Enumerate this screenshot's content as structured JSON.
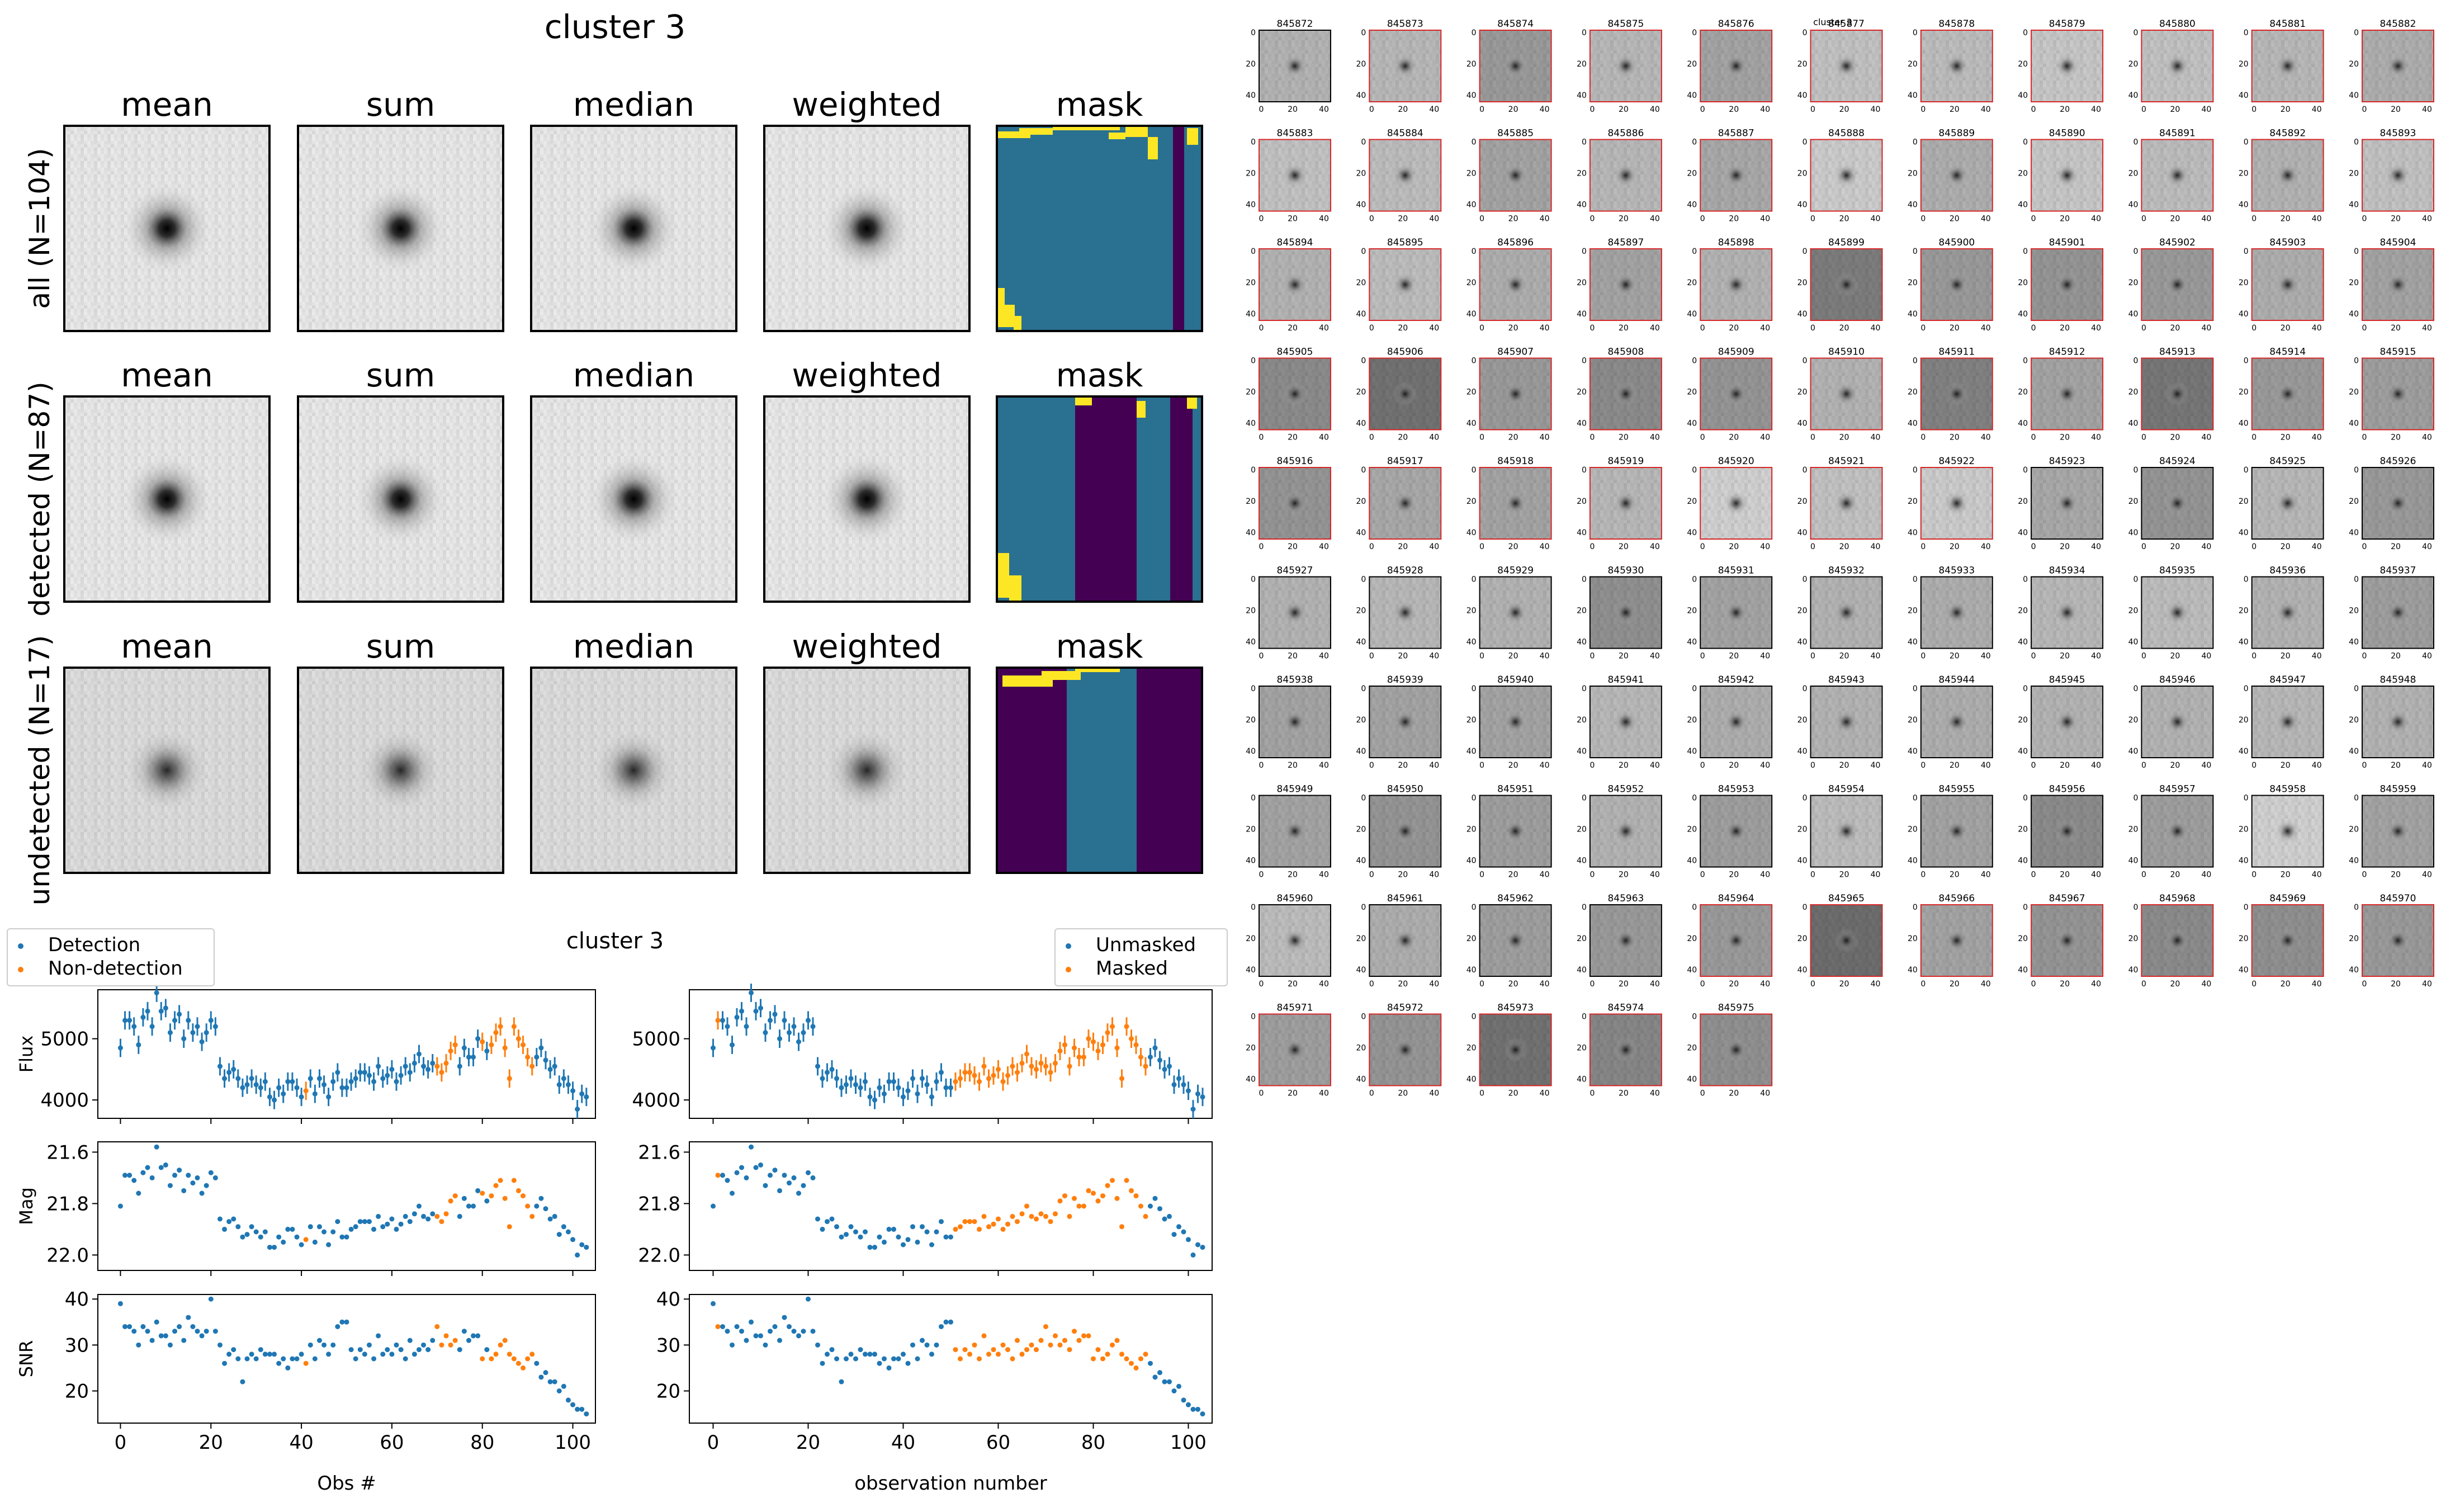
{
  "figure_title": "cluster 3",
  "stack_columns": [
    "mean",
    "sum",
    "median",
    "weighted",
    "mask"
  ],
  "stack_rows": [
    "all (N=104)",
    "detected (N=87)",
    "undetected (N=17)"
  ],
  "lightcurve_title": "cluster 3",
  "grid_title": "cluster 3",
  "left_legend": [
    "Detection",
    "Non-detection"
  ],
  "right_legend": [
    "Unmasked",
    "Masked"
  ],
  "colors": {
    "blue": "#1f77b4",
    "orange": "#ff7f0e",
    "panel_border": "#d62728",
    "mask_dark": "#440154",
    "mask_mid": "#2a7090",
    "mask_yellow": "#fde725"
  },
  "chart_data": [
    {
      "type": "scatter",
      "title": "cluster 3",
      "panels": [
        "Flux",
        "Mag",
        "SNR"
      ],
      "xlabel_left": "Obs #",
      "xlabel_right": "observation number",
      "xlim": [
        -5,
        105
      ],
      "x_ticks": [
        0,
        20,
        40,
        60,
        80,
        100
      ],
      "flux": {
        "ylim": [
          3700,
          5800
        ],
        "ticks": [
          4000,
          5000
        ]
      },
      "mag": {
        "ylim": [
          22.06,
          21.56
        ],
        "ticks": [
          "21.6",
          "21.8",
          "22.0"
        ],
        "inverted": true
      },
      "snr": {
        "ylim": [
          13,
          41
        ],
        "ticks": [
          20,
          30,
          40
        ]
      },
      "flux_values": [
        4850,
        5300,
        5300,
        5200,
        4900,
        5350,
        5450,
        5200,
        5750,
        5450,
        5500,
        5100,
        5300,
        5400,
        5000,
        5300,
        5100,
        5200,
        4950,
        5100,
        5300,
        5200,
        4550,
        4350,
        4450,
        4500,
        4350,
        4200,
        4250,
        4350,
        4250,
        4200,
        4300,
        4050,
        4000,
        4200,
        4100,
        4300,
        4300,
        4200,
        4050,
        4150,
        4350,
        4100,
        4350,
        4250,
        4050,
        4300,
        4450,
        4200,
        4200,
        4300,
        4350,
        4450,
        4450,
        4400,
        4300,
        4550,
        4350,
        4400,
        4500,
        4300,
        4400,
        4550,
        4450,
        4600,
        4750,
        4550,
        4500,
        4600,
        4550,
        4450,
        4600,
        4800,
        4900,
        4550,
        4850,
        4700,
        4700,
        5000,
        4950,
        4800,
        4900,
        5100,
        5200,
        4850,
        4350,
        5200,
        5000,
        4900,
        4700,
        4550,
        4700,
        4850,
        4650,
        4500,
        4550,
        4250,
        4350,
        4250,
        4150,
        3850,
        4100,
        4050
      ],
      "mag_values": [
        21.81,
        21.69,
        21.69,
        21.71,
        21.76,
        21.68,
        21.66,
        21.7,
        21.58,
        21.66,
        21.65,
        21.73,
        21.69,
        21.67,
        21.75,
        21.69,
        21.72,
        21.7,
        21.76,
        21.73,
        21.68,
        21.7,
        21.86,
        21.9,
        21.87,
        21.86,
        21.89,
        21.93,
        21.92,
        21.89,
        21.91,
        21.93,
        21.91,
        21.97,
        21.97,
        21.93,
        21.95,
        21.9,
        21.9,
        21.93,
        21.96,
        21.94,
        21.89,
        21.95,
        21.89,
        21.91,
        21.96,
        21.91,
        21.87,
        21.93,
        21.93,
        21.9,
        21.89,
        21.87,
        21.87,
        21.87,
        21.9,
        21.85,
        21.89,
        21.88,
        21.86,
        21.9,
        21.88,
        21.85,
        21.87,
        21.84,
        21.81,
        21.85,
        21.86,
        21.84,
        21.85,
        21.87,
        21.84,
        21.79,
        21.77,
        21.85,
        21.78,
        21.81,
        21.81,
        21.75,
        21.76,
        21.79,
        21.77,
        21.73,
        21.71,
        21.78,
        21.89,
        21.71,
        21.75,
        21.77,
        21.81,
        21.85,
        21.81,
        21.78,
        21.82,
        21.86,
        21.85,
        21.92,
        21.89,
        21.91,
        21.94,
        22.0,
        21.96,
        21.97
      ],
      "snr_values": [
        39,
        34,
        34,
        33,
        30,
        34,
        33,
        31,
        35,
        32,
        32,
        30,
        33,
        34,
        31,
        36,
        34,
        33,
        32,
        33,
        40,
        33,
        30,
        26,
        28,
        29,
        27,
        22,
        27,
        28,
        27,
        29,
        28,
        28,
        28,
        26,
        27,
        25,
        27,
        27,
        28,
        26,
        30,
        27,
        31,
        30,
        28,
        30,
        34,
        35,
        35,
        29,
        27,
        29,
        28,
        30,
        27,
        32,
        28,
        29,
        28,
        30,
        29,
        27,
        31,
        28,
        29,
        30,
        29,
        31,
        34,
        30,
        32,
        30,
        31,
        29,
        33,
        31,
        32,
        32,
        27,
        29,
        27,
        28,
        30,
        31,
        28,
        27,
        26,
        25,
        27,
        28,
        26,
        23,
        24,
        22,
        22,
        20,
        21,
        18,
        17,
        16,
        16,
        15
      ],
      "mask_state": [
        0,
        1,
        0,
        0,
        0,
        0,
        0,
        0,
        0,
        0,
        0,
        0,
        0,
        0,
        0,
        0,
        0,
        0,
        0,
        0,
        0,
        0,
        0,
        0,
        0,
        0,
        0,
        0,
        0,
        0,
        0,
        0,
        0,
        0,
        0,
        0,
        0,
        0,
        0,
        0,
        0,
        0,
        0,
        0,
        0,
        0,
        0,
        0,
        0,
        0,
        0,
        1,
        1,
        1,
        1,
        1,
        1,
        1,
        1,
        1,
        1,
        1,
        1,
        1,
        1,
        1,
        1,
        1,
        1,
        1,
        1,
        1,
        1,
        1,
        1,
        1,
        1,
        1,
        1,
        1,
        1,
        1,
        1,
        1,
        1,
        1,
        1,
        1,
        1,
        1,
        1,
        1,
        0,
        0,
        0,
        0,
        0,
        0,
        0,
        0,
        0,
        0,
        0,
        0
      ],
      "nondetection_indices": [
        41,
        70,
        71,
        72,
        73,
        74,
        80,
        82,
        83,
        84,
        85,
        86,
        87,
        88,
        89,
        90,
        91
      ],
      "flux_error": 150
    }
  ],
  "cutouts": {
    "ids": [
      "845872",
      "845873",
      "845874",
      "845875",
      "845876",
      "845877",
      "845878",
      "845879",
      "845880",
      "845881",
      "845882",
      "845883",
      "845884",
      "845885",
      "845886",
      "845887",
      "845888",
      "845889",
      "845890",
      "845891",
      "845892",
      "845893",
      "845894",
      "845895",
      "845896",
      "845897",
      "845898",
      "845899",
      "845900",
      "845901",
      "845902",
      "845903",
      "845904",
      "845905",
      "845906",
      "845907",
      "845908",
      "845909",
      "845910",
      "845911",
      "845912",
      "845913",
      "845914",
      "845915",
      "845916",
      "845917",
      "845918",
      "845919",
      "845920",
      "845921",
      "845922",
      "845923",
      "845924",
      "845925",
      "845926",
      "845927",
      "845928",
      "845929",
      "845930",
      "845931",
      "845932",
      "845933",
      "845934",
      "845935",
      "845936",
      "845937",
      "845938",
      "845939",
      "845940",
      "845941",
      "845942",
      "845943",
      "845944",
      "845945",
      "845946",
      "845947",
      "845948",
      "845949",
      "845950",
      "845951",
      "845952",
      "845953",
      "845954",
      "845955",
      "845956",
      "845957",
      "845958",
      "845959",
      "845960",
      "845961",
      "845962",
      "845963",
      "845964",
      "845965",
      "845966",
      "845967",
      "845968",
      "845969",
      "845970",
      "845971",
      "845972",
      "845973",
      "845974",
      "845975"
    ],
    "columns": 11,
    "y_ticks": [
      "0",
      "20",
      "40"
    ],
    "x_ticks": [
      "0",
      "20",
      "40"
    ],
    "masked_indices": [
      1,
      2,
      3,
      4,
      5,
      6,
      7,
      8,
      9,
      10,
      11,
      12,
      13,
      14,
      15,
      16,
      17,
      18,
      19,
      20,
      21,
      22,
      23,
      24,
      25,
      26,
      27,
      28,
      29,
      30,
      31,
      32,
      33,
      34,
      35,
      36,
      37,
      38,
      39,
      40,
      41,
      42,
      43,
      44,
      45,
      46,
      47,
      48,
      49,
      50,
      92,
      93,
      94,
      95,
      96,
      97,
      98,
      99,
      100,
      101,
      102,
      103
    ],
    "grays": [
      0.72,
      0.74,
      0.62,
      0.74,
      0.66,
      0.78,
      0.76,
      0.8,
      0.78,
      0.74,
      0.7,
      0.78,
      0.76,
      0.66,
      0.74,
      0.68,
      0.82,
      0.7,
      0.8,
      0.76,
      0.72,
      0.78,
      0.72,
      0.76,
      0.7,
      0.66,
      0.72,
      0.5,
      0.62,
      0.6,
      0.62,
      0.7,
      0.66,
      0.56,
      0.46,
      0.62,
      0.56,
      0.6,
      0.72,
      0.52,
      0.66,
      0.48,
      0.62,
      0.64,
      0.6,
      0.68,
      0.66,
      0.74,
      0.84,
      0.78,
      0.82,
      0.68,
      0.6,
      0.74,
      0.62,
      0.72,
      0.74,
      0.72,
      0.58,
      0.66,
      0.72,
      0.7,
      0.74,
      0.76,
      0.72,
      0.64,
      0.66,
      0.66,
      0.66,
      0.74,
      0.7,
      0.72,
      0.7,
      0.72,
      0.72,
      0.74,
      0.72,
      0.66,
      0.6,
      0.64,
      0.72,
      0.64,
      0.76,
      0.66,
      0.56,
      0.64,
      0.84,
      0.66,
      0.76,
      0.7,
      0.64,
      0.62,
      0.62,
      0.44,
      0.66,
      0.6,
      0.56,
      0.58,
      0.62,
      0.64,
      0.6,
      0.46,
      0.54,
      0.58
    ]
  }
}
